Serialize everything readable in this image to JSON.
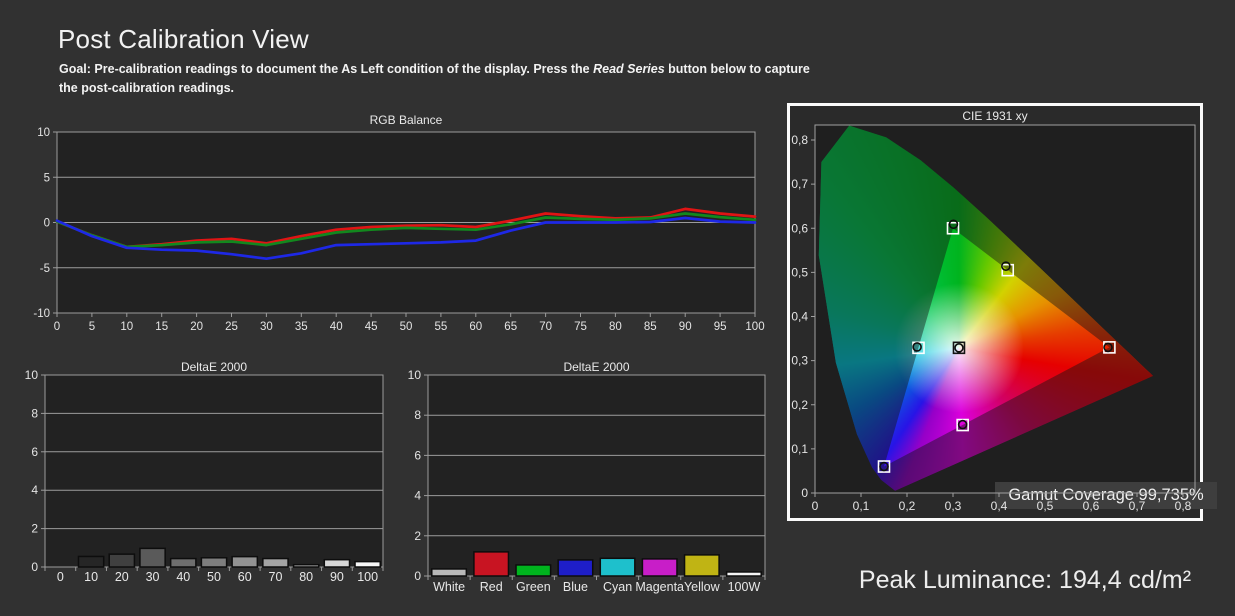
{
  "header": {
    "title": "Post Calibration View",
    "goal_prefix": "Goal: Pre-calibration readings to document the As Left condition of the display. Press the ",
    "goal_italic": "Read Series",
    "goal_mid": " button below to capture",
    "goal_line2": "the post-calibration readings."
  },
  "chart_data": [
    {
      "id": "rgb_balance",
      "type": "line",
      "title": "RGB Balance",
      "xlabel": "",
      "ylabel": "",
      "ylim": [
        -10,
        10
      ],
      "yticks": [
        10,
        5,
        0,
        -5,
        -10
      ],
      "x": [
        0,
        5,
        10,
        15,
        20,
        25,
        30,
        35,
        40,
        45,
        50,
        55,
        60,
        65,
        70,
        75,
        80,
        85,
        90,
        95,
        100
      ],
      "series": [
        {
          "name": "Red",
          "color": "#e01414",
          "values": [
            0.1,
            -1.4,
            -2.7,
            -2.4,
            -2.0,
            -1.8,
            -2.3,
            -1.5,
            -0.8,
            -0.5,
            -0.35,
            -0.3,
            -0.5,
            0.2,
            1.0,
            0.7,
            0.45,
            0.55,
            1.5,
            1.0,
            0.65
          ]
        },
        {
          "name": "Green",
          "color": "#12881e",
          "values": [
            0.1,
            -1.4,
            -2.7,
            -2.5,
            -2.2,
            -2.1,
            -2.5,
            -1.8,
            -1.1,
            -0.8,
            -0.6,
            -0.7,
            -0.8,
            -0.2,
            0.55,
            0.4,
            0.3,
            0.45,
            1.0,
            0.6,
            0.3
          ]
        },
        {
          "name": "Blue",
          "color": "#1e28e6",
          "values": [
            0.2,
            -1.5,
            -2.8,
            -3.0,
            -3.1,
            -3.5,
            -4.0,
            -3.4,
            -2.5,
            -2.4,
            -2.3,
            -2.2,
            -2.0,
            -0.9,
            0.0,
            0.0,
            0.0,
            0.05,
            0.5,
            0.1,
            0.0
          ]
        }
      ]
    },
    {
      "id": "deltae_2000_grayscale",
      "type": "bar",
      "title": "DeltaE 2000",
      "ylim": [
        0,
        10
      ],
      "yticks": [
        0,
        2,
        4,
        6,
        8,
        10
      ],
      "categories": [
        "0",
        "10",
        "20",
        "30",
        "40",
        "50",
        "60",
        "70",
        "80",
        "90",
        "100"
      ],
      "values": [
        0,
        0.55,
        0.67,
        0.97,
        0.44,
        0.48,
        0.54,
        0.44,
        0.12,
        0.38,
        0.28
      ],
      "bar_colors": [
        "#101010",
        "#262626",
        "#404040",
        "#5a5a5a",
        "#6e6e6e",
        "#7e7e7e",
        "#929292",
        "#a4a4a4",
        "#b6b6b6",
        "#d6d6d6",
        "#f5f5f5"
      ]
    },
    {
      "id": "deltae_2000_colors",
      "type": "bar",
      "title": "DeltaE 2000",
      "ylim": [
        0,
        10
      ],
      "yticks": [
        0,
        2,
        4,
        6,
        8,
        10
      ],
      "categories": [
        "White",
        "Red",
        "Green",
        "Blue",
        "Cyan",
        "Magenta",
        "Yellow",
        "100W"
      ],
      "values": [
        0.35,
        1.2,
        0.55,
        0.8,
        0.88,
        0.85,
        1.05,
        0.2
      ],
      "bar_colors": [
        "#b8b8b8",
        "#c81422",
        "#00b41e",
        "#1e1ec8",
        "#1ec0cc",
        "#c81ec8",
        "#c0b414",
        "#f2f2f2"
      ]
    },
    {
      "id": "cie_1931_xy",
      "type": "scatter",
      "title": "CIE 1931 xy",
      "xlim": [
        0,
        0.8
      ],
      "ylim": [
        0,
        0.8
      ],
      "xticks": [
        "0",
        "0,1",
        "0,2",
        "0,3",
        "0,4",
        "0,5",
        "0,6",
        "0,7",
        "0,8"
      ],
      "yticks": [
        "0",
        "0,1",
        "0,2",
        "0,3",
        "0,4",
        "0,5",
        "0,6",
        "0,7",
        "0,8"
      ],
      "gamut_coverage_label": "Gamut Coverage 99,735%",
      "triangle": {
        "red": [
          0.64,
          0.33
        ],
        "green": [
          0.3,
          0.6
        ],
        "blue": [
          0.15,
          0.06
        ]
      },
      "points": [
        {
          "name": "white-point",
          "x": 0.313,
          "y": 0.329,
          "square": "#141414",
          "dx": 0,
          "dy": 0
        },
        {
          "name": "red",
          "x": 0.64,
          "y": 0.33,
          "square": "#ffffff",
          "dx": -0.003,
          "dy": 0
        },
        {
          "name": "green",
          "x": 0.3,
          "y": 0.6,
          "square": "#ffffff",
          "dx": 0.001,
          "dy": 0.009
        },
        {
          "name": "blue",
          "x": 0.15,
          "y": 0.06,
          "square": "#ffffff",
          "dx": 0,
          "dy": 0
        },
        {
          "name": "cyan",
          "x": 0.225,
          "y": 0.329,
          "square": "#ffffff",
          "dx": -0.003,
          "dy": 0.002
        },
        {
          "name": "magenta",
          "x": 0.321,
          "y": 0.154,
          "square": "#ffffff",
          "dx": 0,
          "dy": 0.001
        },
        {
          "name": "yellow",
          "x": 0.419,
          "y": 0.505,
          "square": "#ffffff",
          "dx": -0.004,
          "dy": 0.009
        }
      ]
    }
  ],
  "footer": {
    "peak_luminance": "Peak Luminance: 194,4 cd/m²"
  }
}
